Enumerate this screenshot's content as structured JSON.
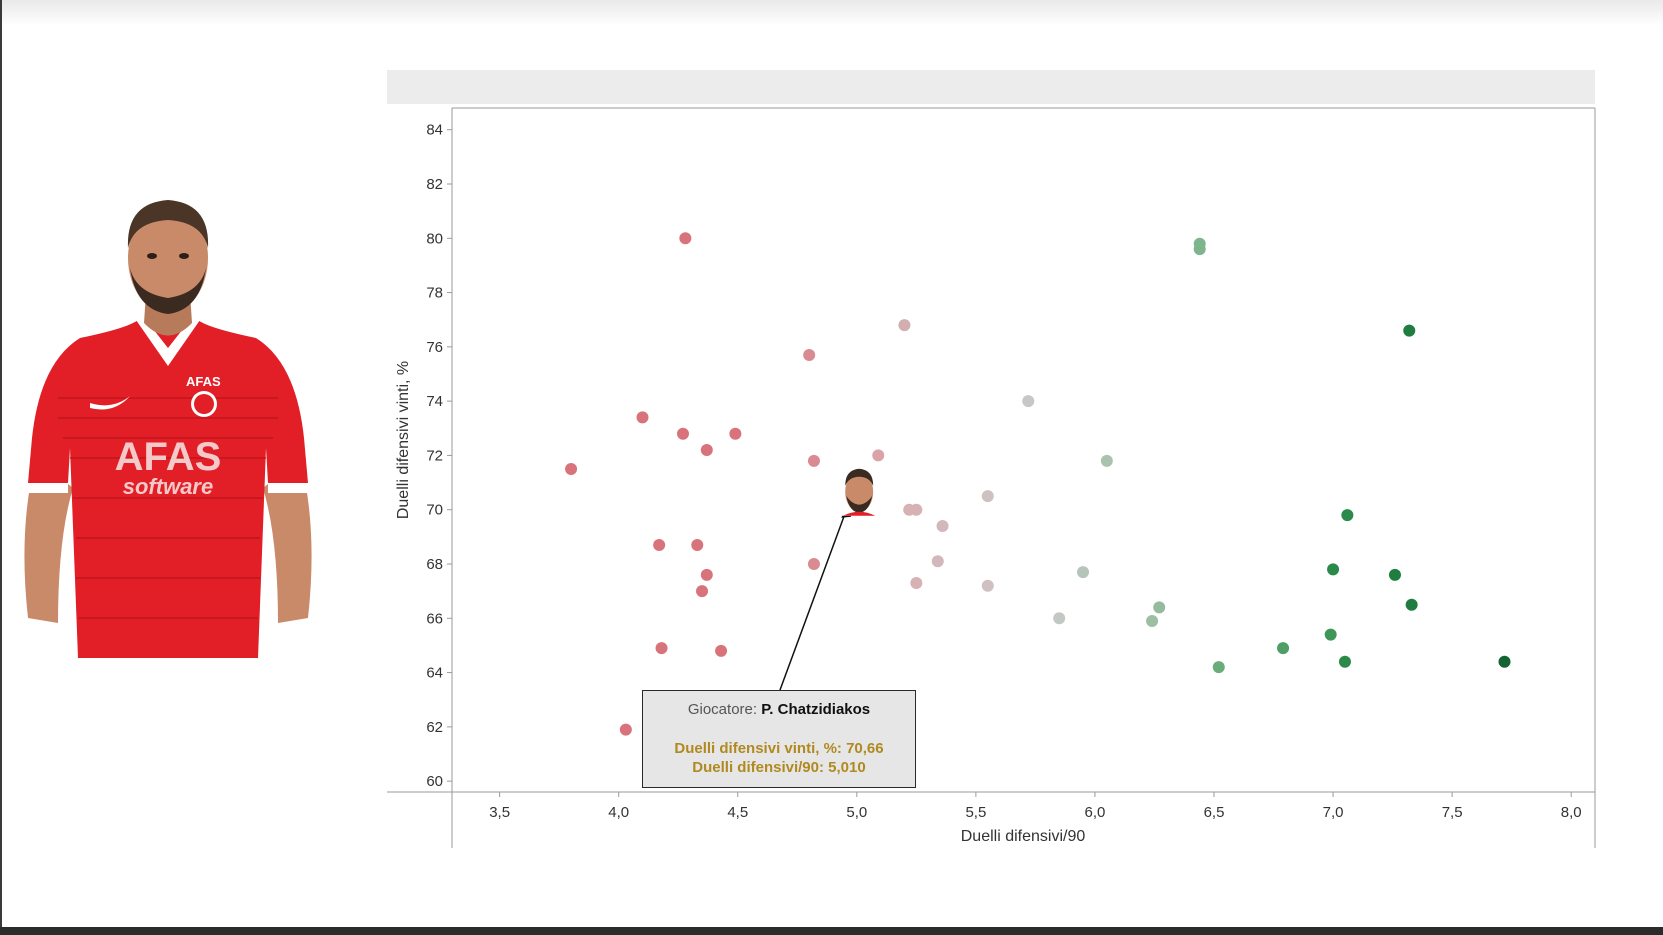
{
  "chart_data": {
    "type": "scatter",
    "title": "",
    "xlabel": "Duelli difensivi/90",
    "ylabel": "Duelli difensivi vinti, %",
    "xlim": [
      3.3,
      8.1
    ],
    "ylim": [
      59.6,
      84.8
    ],
    "x_ticks": [
      "3,5",
      "4,0",
      "4,5",
      "5,0",
      "5,5",
      "6,0",
      "6,5",
      "7,0",
      "7,5",
      "8,0"
    ],
    "x_tick_values": [
      3.5,
      4.0,
      4.5,
      5.0,
      5.5,
      6.0,
      6.5,
      7.0,
      7.5,
      8.0
    ],
    "y_ticks": [
      "60",
      "62",
      "64",
      "66",
      "68",
      "70",
      "72",
      "74",
      "76",
      "78",
      "80",
      "82",
      "84"
    ],
    "y_tick_values": [
      60,
      62,
      64,
      66,
      68,
      70,
      72,
      74,
      76,
      78,
      80,
      82,
      84
    ],
    "grid": false,
    "color_scale": "red-grey-green by x value",
    "points": [
      {
        "x": 3.8,
        "y": 71.5,
        "color": "#d9737b"
      },
      {
        "x": 4.03,
        "y": 61.9,
        "color": "#d9737b"
      },
      {
        "x": 4.1,
        "y": 73.4,
        "color": "#d9737b"
      },
      {
        "x": 4.17,
        "y": 68.7,
        "color": "#d9737b"
      },
      {
        "x": 4.18,
        "y": 64.9,
        "color": "#d9737b"
      },
      {
        "x": 4.27,
        "y": 72.8,
        "color": "#d9737b"
      },
      {
        "x": 4.28,
        "y": 80.0,
        "color": "#d9737b"
      },
      {
        "x": 4.33,
        "y": 68.7,
        "color": "#d9737b"
      },
      {
        "x": 4.35,
        "y": 67.0,
        "color": "#d9737b"
      },
      {
        "x": 4.37,
        "y": 72.2,
        "color": "#d9737b"
      },
      {
        "x": 4.37,
        "y": 67.6,
        "color": "#d9737b"
      },
      {
        "x": 4.43,
        "y": 64.8,
        "color": "#d9737b"
      },
      {
        "x": 4.49,
        "y": 72.8,
        "color": "#d9737b"
      },
      {
        "x": 4.8,
        "y": 75.7,
        "color": "#d98b91"
      },
      {
        "x": 4.82,
        "y": 71.8,
        "color": "#d98b91"
      },
      {
        "x": 4.82,
        "y": 68.0,
        "color": "#d98b91"
      },
      {
        "x": 5.09,
        "y": 72.0,
        "color": "#dba3a7"
      },
      {
        "x": 5.2,
        "y": 76.8,
        "color": "#d2aeb1"
      },
      {
        "x": 5.22,
        "y": 70.0,
        "color": "#d6b2b5"
      },
      {
        "x": 5.25,
        "y": 70.0,
        "color": "#d6b2b5"
      },
      {
        "x": 5.25,
        "y": 67.3,
        "color": "#d6b2b5"
      },
      {
        "x": 5.34,
        "y": 68.1,
        "color": "#d2b8ba"
      },
      {
        "x": 5.36,
        "y": 69.4,
        "color": "#d2b8ba"
      },
      {
        "x": 5.55,
        "y": 70.5,
        "color": "#cfc0c1"
      },
      {
        "x": 5.55,
        "y": 67.2,
        "color": "#cfc0c1"
      },
      {
        "x": 5.72,
        "y": 74.0,
        "color": "#c8c6c6"
      },
      {
        "x": 5.85,
        "y": 66.0,
        "color": "#c2c8c3"
      },
      {
        "x": 5.95,
        "y": 67.7,
        "color": "#b6c5b9"
      },
      {
        "x": 6.05,
        "y": 71.8,
        "color": "#a9c3ae"
      },
      {
        "x": 6.24,
        "y": 65.9,
        "color": "#9cbfa3"
      },
      {
        "x": 6.27,
        "y": 66.4,
        "color": "#94bc9c"
      },
      {
        "x": 6.44,
        "y": 79.8,
        "color": "#7fb58c"
      },
      {
        "x": 6.44,
        "y": 79.6,
        "color": "#7fb58c"
      },
      {
        "x": 6.52,
        "y": 64.2,
        "color": "#6aac7a"
      },
      {
        "x": 6.79,
        "y": 64.9,
        "color": "#4f9e65"
      },
      {
        "x": 6.99,
        "y": 65.4,
        "color": "#3e9658"
      },
      {
        "x": 7.0,
        "y": 67.8,
        "color": "#2a8a49"
      },
      {
        "x": 7.05,
        "y": 64.4,
        "color": "#2a8a49"
      },
      {
        "x": 7.06,
        "y": 69.8,
        "color": "#2a8a49"
      },
      {
        "x": 7.26,
        "y": 67.6,
        "color": "#1f7d3f"
      },
      {
        "x": 7.32,
        "y": 76.6,
        "color": "#1f7d3f"
      },
      {
        "x": 7.33,
        "y": 66.5,
        "color": "#1f7d3f"
      },
      {
        "x": 7.72,
        "y": 64.4,
        "color": "#146332"
      }
    ],
    "highlight": {
      "x": 5.01,
      "y": 70.66
    },
    "annotation": {
      "label_prefix": "Giocatore: ",
      "player": "P. Chatzidiakos",
      "line1": "Duelli difensivi vinti, %: 70,66",
      "line2": "Duelli difensivi/90: 5,010"
    }
  }
}
